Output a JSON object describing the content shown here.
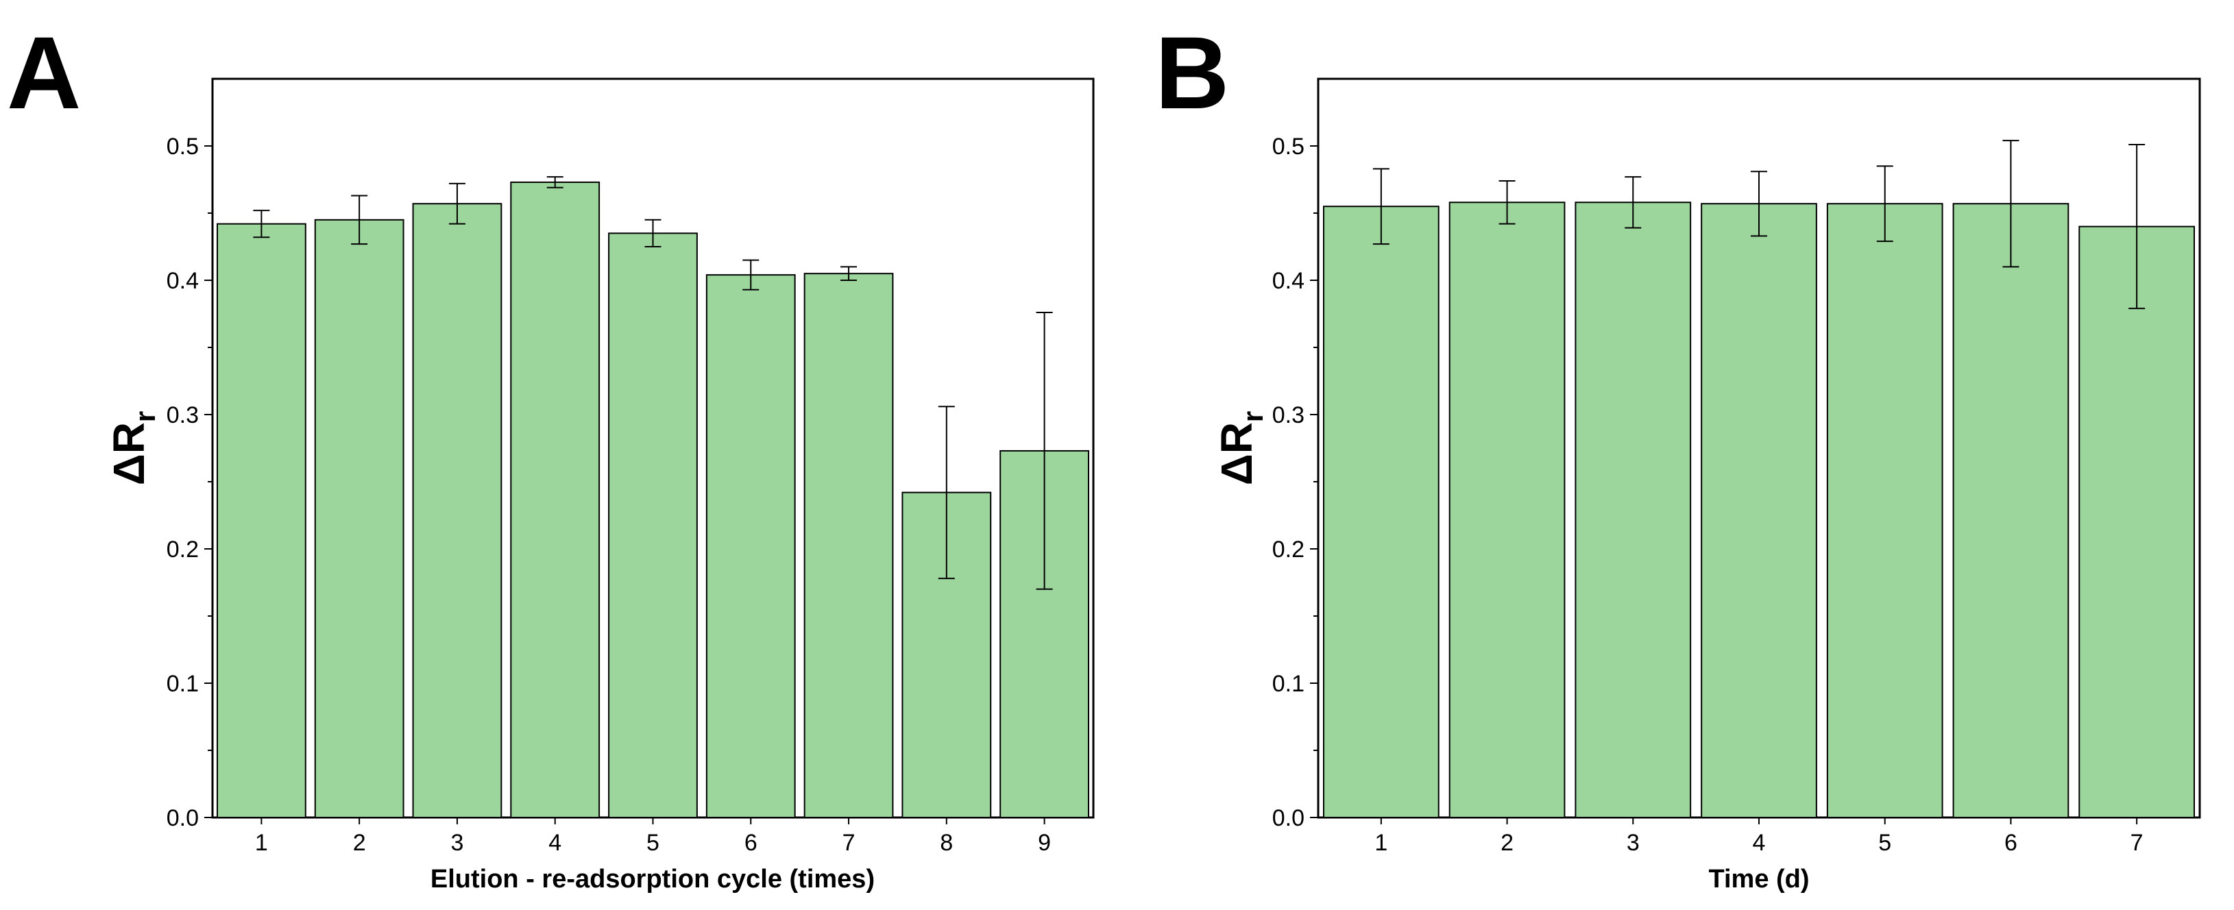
{
  "chart_data": [
    {
      "type": "bar",
      "panel_label": "A",
      "title": "",
      "xlabel": "Elution - re-adsorption cycle (times)",
      "ylabel": "ΔR",
      "ylabel_subscript": "r",
      "categories": [
        "1",
        "2",
        "3",
        "4",
        "5",
        "6",
        "7",
        "8",
        "9"
      ],
      "values": [
        0.442,
        0.445,
        0.457,
        0.473,
        0.435,
        0.404,
        0.405,
        0.242,
        0.273
      ],
      "errors": [
        0.01,
        0.018,
        0.015,
        0.004,
        0.01,
        0.011,
        0.005,
        0.064,
        0.103
      ],
      "ylim": [
        0,
        0.55
      ],
      "yticks": [
        "0.0",
        "0.1",
        "0.2",
        "0.3",
        "0.4",
        "0.5"
      ],
      "bar_color": "#9cd69c",
      "grid": false,
      "legend": "none"
    },
    {
      "type": "bar",
      "panel_label": "B",
      "title": "",
      "xlabel": "Time (d)",
      "ylabel": "ΔR",
      "ylabel_subscript": "r",
      "categories": [
        "1",
        "2",
        "3",
        "4",
        "5",
        "6",
        "7"
      ],
      "values": [
        0.455,
        0.458,
        0.458,
        0.457,
        0.457,
        0.457,
        0.44
      ],
      "errors": [
        0.028,
        0.016,
        0.019,
        0.024,
        0.028,
        0.047,
        0.061
      ],
      "ylim": [
        0,
        0.55
      ],
      "yticks": [
        "0.0",
        "0.1",
        "0.2",
        "0.3",
        "0.4",
        "0.5"
      ],
      "bar_color": "#9cd69c",
      "grid": false,
      "legend": "none"
    }
  ]
}
